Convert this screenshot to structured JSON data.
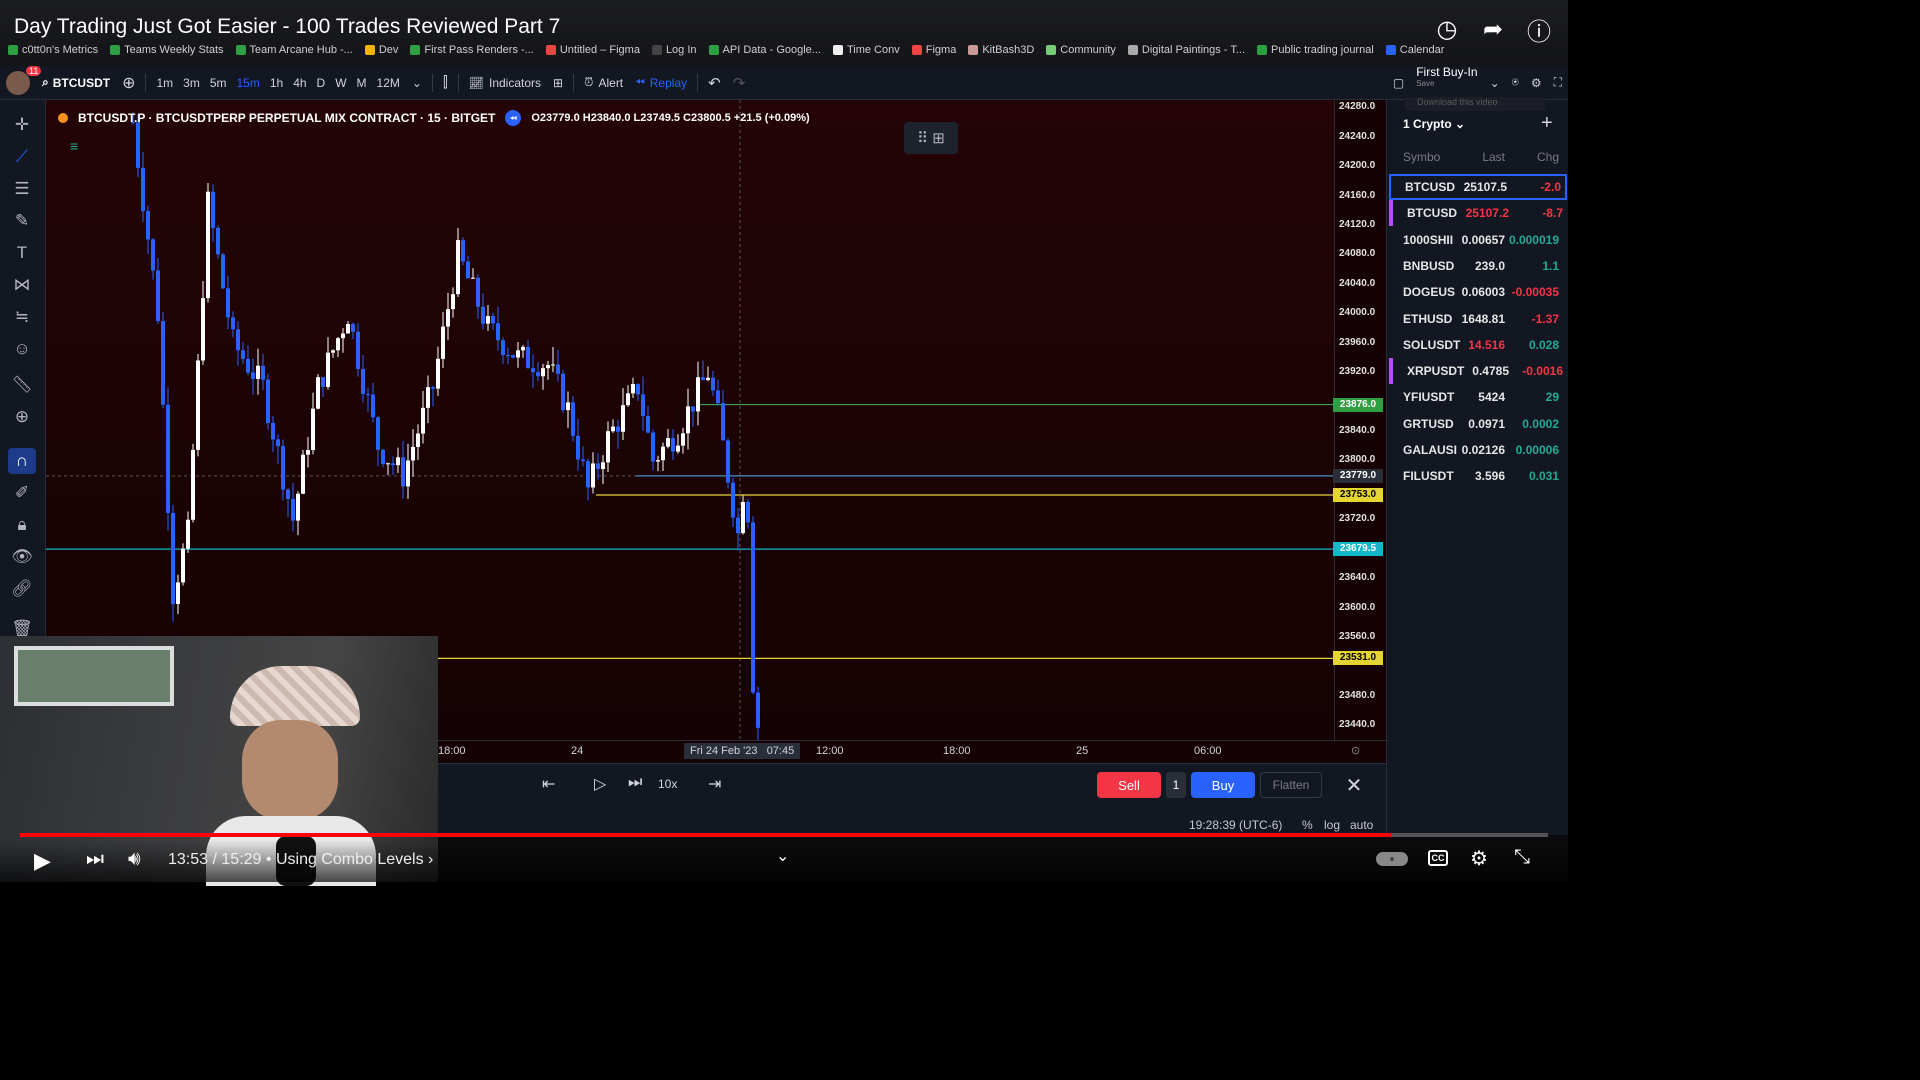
{
  "video": {
    "title": "Day Trading Just Got Easier - 100 Trades Reviewed Part 7",
    "time_current": "13:53",
    "time_total": "15:29",
    "time_separator": "/",
    "chapter": "Using Combo Levels ›",
    "progress": 0.897
  },
  "bookmarks": [
    "c0tt0n's Metrics",
    "Teams Weekly Stats",
    "Team Arcane Hub -...",
    "Dev",
    "First Pass Renders -...",
    "Untitled – Figma",
    "Log In",
    "API Data - Google...",
    "Time Conv",
    "Figma",
    "KitBash3D",
    "Community",
    "Digital Paintings - T...",
    "Public trading journal",
    "Calendar"
  ],
  "toolbar": {
    "notification_count": "11",
    "symbol": "BTCUSDT",
    "intervals": [
      "1m",
      "3m",
      "5m",
      "15m",
      "1h",
      "4h",
      "D",
      "W",
      "M",
      "12M"
    ],
    "active_interval": "15m",
    "indicators_label": "Indicators",
    "alert_label": "Alert",
    "replay_label": "Replay",
    "layout_name": "First Buy-In",
    "layout_sub": "Save",
    "download_label": "Download this video"
  },
  "legend": {
    "title": "BTCUSDT.P · BTCUSDTPERP PERPETUAL MIX CONTRACT · 15 · BITGET",
    "ohlc": "O23779.0 H23840.0 L23749.5 C23800.5 +21.5 (+0.09%)"
  },
  "price_axis": {
    "labels": [
      "24280.0",
      "24240.0",
      "24200.0",
      "24160.0",
      "24120.0",
      "24080.0",
      "24040.0",
      "24000.0",
      "23960.0",
      "23920.0",
      "23840.0",
      "23800.0",
      "23720.0",
      "23640.0",
      "23600.0",
      "23560.0",
      "23480.0",
      "23440.0"
    ],
    "tags": [
      {
        "text": "23876.0",
        "color": "#2ea043",
        "fg": "#ffffff"
      },
      {
        "text": "23779.0",
        "color": "#2a2e39",
        "fg": "#ffffff"
      },
      {
        "text": "23753.0",
        "color": "#e5d531",
        "fg": "#000000"
      },
      {
        "text": "23679.5",
        "color": "#11b8c8",
        "fg": "#ffffff"
      },
      {
        "text": "23531.0",
        "color": "#e5d531",
        "fg": "#000000"
      }
    ]
  },
  "time_axis": {
    "labels": [
      "18:00",
      "24",
      "12:00",
      "18:00",
      "25",
      "06:00"
    ],
    "cursor_label": "Fri 24 Feb '23   07:45"
  },
  "replay": {
    "speed": "10x",
    "sell_label": "Sell",
    "qty": "1",
    "buy_label": "Buy",
    "flatten_label": "Flatten"
  },
  "status": {
    "clock": "19:28:39 (UTC-6)",
    "percent": "%",
    "log": "log",
    "auto": "auto"
  },
  "watchlist": {
    "title": "1 Crypto",
    "headers": [
      "Symbo",
      "Last",
      "Chg"
    ],
    "rows": [
      {
        "symbol": "BTCUSD",
        "last": "25107.5",
        "chg": "-2.0",
        "chg_color": "#f23645"
      },
      {
        "symbol": "BTCUSD",
        "last": "25107.2",
        "chg": "-8.7",
        "chg_color": "#f23645"
      },
      {
        "symbol": "1000SHII",
        "last": "0.00657",
        "chg": "0.000019",
        "chg_color": "#22ab94"
      },
      {
        "symbol": "BNBUSD",
        "last": "239.0",
        "chg": "1.1",
        "chg_color": "#22ab94"
      },
      {
        "symbol": "DOGEUS",
        "last": "0.06003",
        "chg": "-0.00035",
        "chg_color": "#f23645"
      },
      {
        "symbol": "ETHUSD",
        "last": "1648.81",
        "chg": "-1.37",
        "chg_color": "#f23645"
      },
      {
        "symbol": "SOLUSDT",
        "last": "14.516",
        "chg": "0.028",
        "chg_color": "#22ab94"
      },
      {
        "symbol": "XRPUSDT",
        "last": "0.4785",
        "chg": "-0.0016",
        "chg_color": "#f23645"
      },
      {
        "symbol": "YFIUSDT",
        "last": "5424",
        "chg": "29",
        "chg_color": "#22ab94"
      },
      {
        "symbol": "GRTUSD",
        "last": "0.0971",
        "chg": "0.0002",
        "chg_color": "#22ab94"
      },
      {
        "symbol": "GALAUSI",
        "last": "0.02126",
        "chg": "0.00006",
        "chg_color": "#22ab94"
      },
      {
        "symbol": "FILUSDT",
        "last": "3.596",
        "chg": "0.031",
        "chg_color": "#22ab94"
      }
    ]
  },
  "chart_data": {
    "type": "candlestick",
    "up_color": "#ffffff",
    "down_color": "#2962ff",
    "levels": [
      23876.0,
      23779.0,
      23753.0,
      23679.5,
      23531.0
    ],
    "ylim": [
      23420,
      24290
    ]
  }
}
